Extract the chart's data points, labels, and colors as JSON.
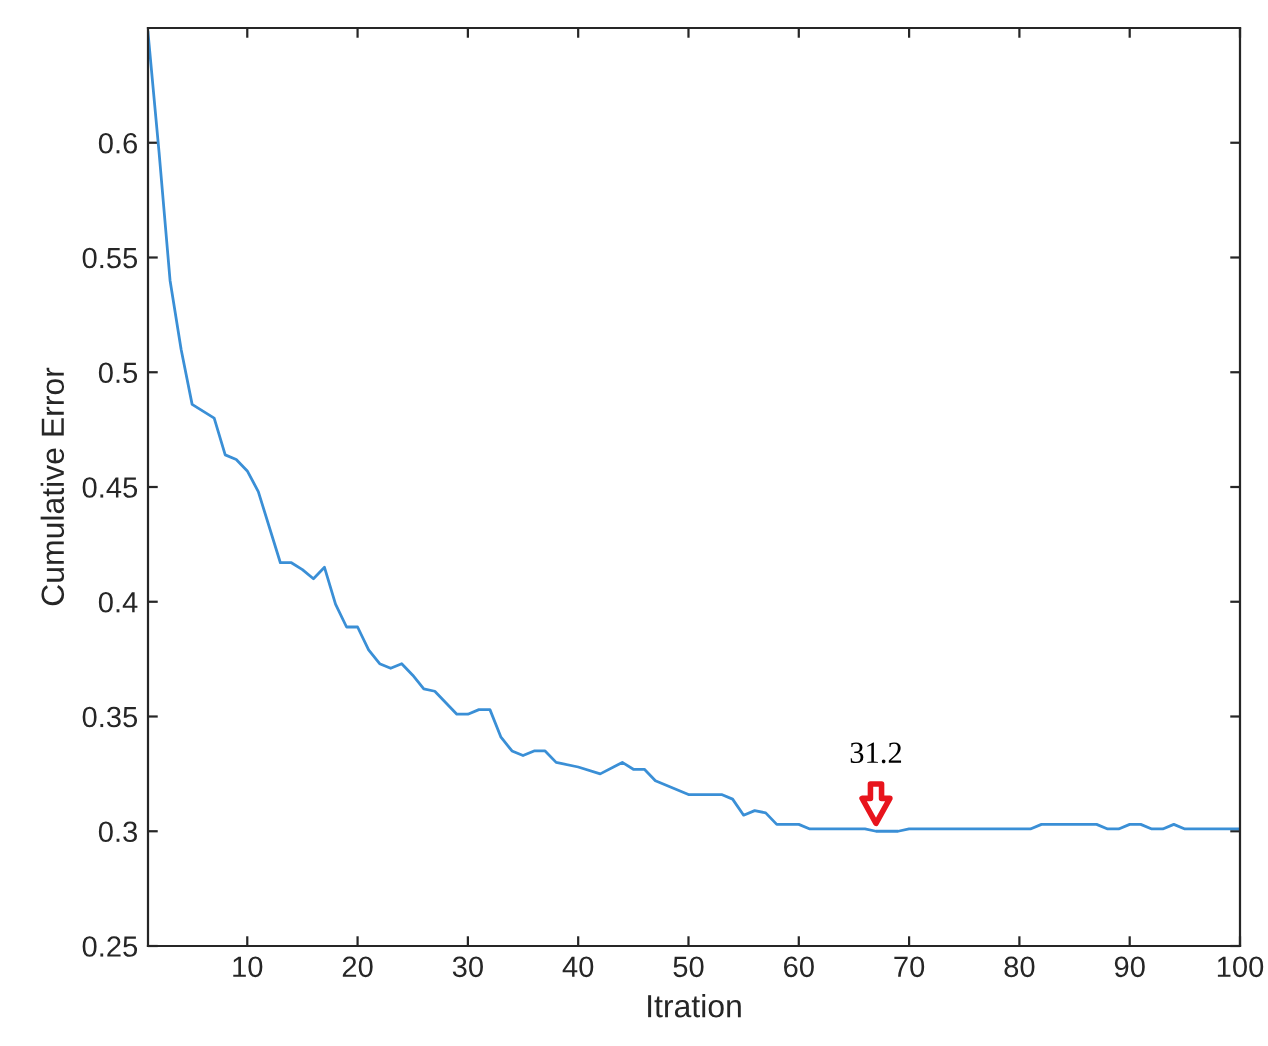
{
  "chart_data": {
    "type": "line",
    "xlabel": "Itration",
    "ylabel": "Cumulative Error",
    "series": [
      {
        "color": "#3a8fd6",
        "x": [
          1,
          2,
          3,
          4,
          5,
          7,
          8,
          9,
          10,
          11,
          13,
          14,
          15,
          16,
          17,
          18,
          19,
          20,
          21,
          22,
          23,
          24,
          25,
          26,
          27,
          28,
          29,
          30,
          31,
          32,
          33,
          34,
          35,
          36,
          37,
          38,
          40,
          42,
          44,
          45,
          46,
          47,
          50,
          53,
          54,
          55,
          56,
          57,
          58,
          60,
          61,
          66,
          67,
          69,
          70,
          81,
          82,
          87,
          88,
          89,
          90,
          91,
          92,
          93,
          94,
          95,
          100
        ],
        "values": [
          0.648,
          0.596,
          0.54,
          0.51,
          0.486,
          0.48,
          0.464,
          0.462,
          0.457,
          0.448,
          0.417,
          0.417,
          0.414,
          0.41,
          0.415,
          0.399,
          0.389,
          0.389,
          0.379,
          0.373,
          0.371,
          0.373,
          0.368,
          0.362,
          0.361,
          0.356,
          0.351,
          0.351,
          0.353,
          0.353,
          0.341,
          0.335,
          0.333,
          0.335,
          0.335,
          0.33,
          0.328,
          0.325,
          0.33,
          0.327,
          0.327,
          0.322,
          0.316,
          0.316,
          0.314,
          0.307,
          0.309,
          0.308,
          0.303,
          0.303,
          0.301,
          0.301,
          0.3,
          0.3,
          0.301,
          0.301,
          0.303,
          0.303,
          0.301,
          0.301,
          0.303,
          0.303,
          0.301,
          0.301,
          0.303,
          0.301,
          0.301
        ]
      }
    ],
    "xlim": [
      1,
      100
    ],
    "xticks": [
      10,
      20,
      30,
      40,
      50,
      60,
      70,
      80,
      90,
      100
    ],
    "ylim": [
      0.25,
      0.65
    ],
    "yticks": [
      0.25,
      0.3,
      0.35,
      0.4,
      0.45,
      0.5,
      0.55,
      0.6
    ],
    "grid": false,
    "legend": false,
    "marker": "none",
    "line_style": "solid",
    "annotations": [
      {
        "text": "31.2",
        "x": 67,
        "y": 0.301
      }
    ]
  }
}
